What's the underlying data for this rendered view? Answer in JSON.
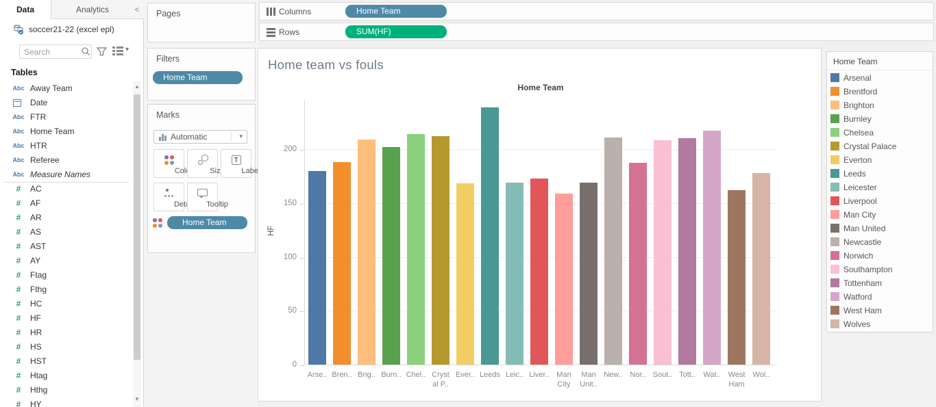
{
  "data_pane": {
    "tabs": {
      "data": "Data",
      "analytics": "Analytics"
    },
    "collapse_label": "<",
    "datasource_name": "soccer21-22 (excel epl)",
    "search_placeholder": "Search",
    "tables_label": "Tables",
    "fields": [
      {
        "name": "Away Team",
        "type": "abc"
      },
      {
        "name": "Date",
        "type": "date"
      },
      {
        "name": "FTR",
        "type": "abc"
      },
      {
        "name": "Home Team",
        "type": "abc"
      },
      {
        "name": "HTR",
        "type": "abc"
      },
      {
        "name": "Referee",
        "type": "abc"
      },
      {
        "name": "Measure Names",
        "type": "abc",
        "italic": true
      },
      {
        "name": "AC",
        "type": "num"
      },
      {
        "name": "AF",
        "type": "num"
      },
      {
        "name": "AR",
        "type": "num"
      },
      {
        "name": "AS",
        "type": "num"
      },
      {
        "name": "AST",
        "type": "num"
      },
      {
        "name": "AY",
        "type": "num"
      },
      {
        "name": "Ftag",
        "type": "num"
      },
      {
        "name": "Fthg",
        "type": "num"
      },
      {
        "name": "HC",
        "type": "num"
      },
      {
        "name": "HF",
        "type": "num"
      },
      {
        "name": "HR",
        "type": "num"
      },
      {
        "name": "HS",
        "type": "num"
      },
      {
        "name": "HST",
        "type": "num"
      },
      {
        "name": "Htag",
        "type": "num"
      },
      {
        "name": "Hthg",
        "type": "num"
      },
      {
        "name": "HY",
        "type": "num"
      }
    ]
  },
  "cards": {
    "pages_label": "Pages",
    "filters_label": "Filters",
    "filters_pill": "Home Team",
    "marks": {
      "label": "Marks",
      "mark_type": "Automatic",
      "buttons": [
        {
          "label": "Color",
          "icon": "color-dots-icon"
        },
        {
          "label": "Size",
          "icon": "size-circles-icon"
        },
        {
          "label": "Label",
          "icon": "label-t-icon"
        },
        {
          "label": "Detail",
          "icon": "detail-dots-icon"
        },
        {
          "label": "Tooltip",
          "icon": "tooltip-bubble-icon"
        }
      ],
      "color_pill": "Home Team"
    }
  },
  "shelves": {
    "columns_label": "Columns",
    "columns_pill": "Home Team",
    "rows_label": "Rows",
    "rows_pill": "SUM(HF)"
  },
  "colors": {
    "dimension_pill": "#4e8aa8",
    "measure_pill": "#00b17c"
  },
  "worksheet_title": "Home team vs fouls",
  "legend": {
    "title": "Home Team"
  },
  "chart_data": {
    "type": "bar",
    "title": "Home team vs fouls",
    "column_header": "Home Team",
    "ylabel": "HF",
    "y_ticks": [
      0,
      50,
      100,
      150,
      200
    ],
    "ylim": [
      0,
      246
    ],
    "grid": "horizontal-light",
    "legend_position": "right",
    "categories": [
      "Arsenal",
      "Brentford",
      "Brighton",
      "Burnley",
      "Chelsea",
      "Crystal Palace",
      "Everton",
      "Leeds",
      "Leicester",
      "Liverpool",
      "Man City",
      "Man United",
      "Newcastle",
      "Norwich",
      "Southampton",
      "Tottenham",
      "Watford",
      "West Ham",
      "Wolves"
    ],
    "values": [
      180,
      188,
      209,
      202,
      214,
      212,
      168,
      239,
      169,
      173,
      159,
      169,
      211,
      187,
      208,
      210,
      217,
      162,
      178
    ],
    "colors": [
      "#4e79a7",
      "#f28e2b",
      "#ffbe7d",
      "#59a14f",
      "#8cd17d",
      "#b6992d",
      "#f1ce63",
      "#499894",
      "#86bcb6",
      "#e15759",
      "#ff9d9a",
      "#79706e",
      "#bab0ac",
      "#d37295",
      "#fabfd2",
      "#b07aa1",
      "#d4a6c8",
      "#9d7660",
      "#d7b5a6"
    ],
    "x_tick_labels": [
      [
        "Arse.."
      ],
      [
        "Bren.."
      ],
      [
        "Brig.."
      ],
      [
        "Burn.."
      ],
      [
        "Chel.."
      ],
      [
        "Cryst",
        "al P.."
      ],
      [
        "Ever.."
      ],
      [
        "Leeds"
      ],
      [
        "Leic.."
      ],
      [
        "Liver.."
      ],
      [
        "Man",
        "City"
      ],
      [
        "Man",
        "Unit.."
      ],
      [
        "New.."
      ],
      [
        "Nor.."
      ],
      [
        "Sout.."
      ],
      [
        "Tott.."
      ],
      [
        "Wat.."
      ],
      [
        "West",
        "Ham"
      ],
      [
        "Wol.."
      ]
    ]
  }
}
